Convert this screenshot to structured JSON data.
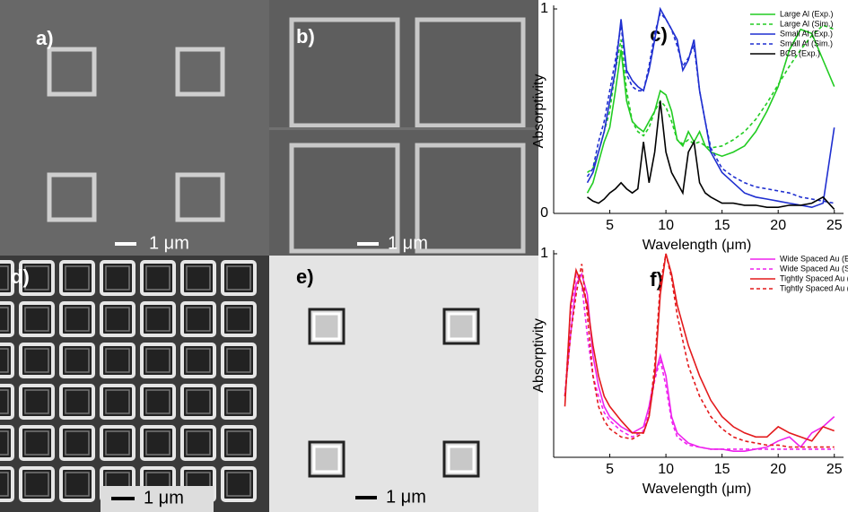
{
  "panels": [
    {
      "label": "a)",
      "scale_bar": "1 μm"
    },
    {
      "label": "b)",
      "scale_bar": "1 μm"
    },
    {
      "label": "d)",
      "scale_bar": "1 μm"
    },
    {
      "label": "e)",
      "scale_bar": "1 μm"
    }
  ],
  "chart_data": [
    {
      "type": "line",
      "label": "c)",
      "xlabel": "Wavelength (μm)",
      "ylabel": "Absorptivity",
      "xlim": [
        0,
        25.5
      ],
      "xticks": [
        5,
        10,
        15,
        20,
        25
      ],
      "ylim": [
        0,
        1
      ],
      "yticks": [
        0,
        1
      ],
      "legend": "upper right",
      "x": [
        3,
        3.5,
        4,
        4.5,
        5,
        5.5,
        6,
        6.5,
        7,
        7.5,
        8,
        8.5,
        9,
        9.5,
        10,
        10.5,
        11,
        11.5,
        12,
        12.5,
        13,
        13.5,
        14,
        15,
        16,
        17,
        18,
        19,
        20,
        21,
        22,
        23,
        24,
        25
      ],
      "series": [
        {
          "name": "Large Al (Exp.)",
          "color": "#22cc22",
          "dashed": false,
          "values": [
            0.1,
            0.15,
            0.25,
            0.35,
            0.42,
            0.6,
            0.8,
            0.55,
            0.45,
            0.42,
            0.4,
            0.45,
            0.5,
            0.6,
            0.58,
            0.5,
            0.36,
            0.33,
            0.4,
            0.35,
            0.4,
            0.33,
            0.3,
            0.28,
            0.3,
            0.33,
            0.4,
            0.5,
            0.62,
            0.8,
            0.9,
            0.88,
            0.75,
            0.62
          ]
        },
        {
          "name": "Large Al (Sim.)",
          "color": "#22cc22",
          "dashed": true,
          "values": [
            0.2,
            0.22,
            0.3,
            0.4,
            0.5,
            0.7,
            0.85,
            0.6,
            0.45,
            0.4,
            0.38,
            0.42,
            0.5,
            0.55,
            0.52,
            0.45,
            0.36,
            0.34,
            0.36,
            0.34,
            0.35,
            0.33,
            0.32,
            0.33,
            0.36,
            0.4,
            0.46,
            0.54,
            0.63,
            0.72,
            0.8,
            0.87,
            0.92,
            0.9
          ]
        },
        {
          "name": "Small Al (Exp.)",
          "color": "#1f2fd0",
          "dashed": false,
          "values": [
            0.15,
            0.2,
            0.3,
            0.4,
            0.55,
            0.7,
            0.95,
            0.7,
            0.65,
            0.62,
            0.6,
            0.7,
            0.85,
            1.0,
            0.95,
            0.9,
            0.85,
            0.7,
            0.75,
            0.85,
            0.6,
            0.45,
            0.3,
            0.2,
            0.15,
            0.1,
            0.08,
            0.07,
            0.06,
            0.05,
            0.04,
            0.03,
            0.05,
            0.42
          ]
        },
        {
          "name": "Small Al (Sim.)",
          "color": "#1f2fd0",
          "dashed": true,
          "values": [
            0.18,
            0.22,
            0.35,
            0.45,
            0.6,
            0.75,
            0.92,
            0.68,
            0.62,
            0.6,
            0.6,
            0.72,
            0.88,
            0.98,
            0.95,
            0.9,
            0.82,
            0.72,
            0.76,
            0.82,
            0.6,
            0.45,
            0.32,
            0.22,
            0.18,
            0.15,
            0.13,
            0.12,
            0.11,
            0.1,
            0.08,
            0.07,
            0.06,
            0.05
          ]
        },
        {
          "name": "BCB (Exp.)",
          "color": "#000000",
          "dashed": false,
          "values": [
            0.08,
            0.06,
            0.05,
            0.07,
            0.1,
            0.12,
            0.15,
            0.12,
            0.1,
            0.12,
            0.35,
            0.15,
            0.3,
            0.55,
            0.3,
            0.2,
            0.15,
            0.1,
            0.3,
            0.35,
            0.15,
            0.1,
            0.08,
            0.05,
            0.05,
            0.04,
            0.04,
            0.03,
            0.03,
            0.04,
            0.04,
            0.05,
            0.08,
            0.02
          ]
        }
      ]
    },
    {
      "type": "line",
      "label": "f)",
      "xlabel": "Wavelength (μm)",
      "ylabel": "Absorptivity",
      "xlim": [
        0,
        25.5
      ],
      "xticks": [
        5,
        10,
        15,
        20,
        25
      ],
      "ylim": [
        0,
        1
      ],
      "yticks": [
        1
      ],
      "legend": "upper right",
      "x": [
        1,
        1.5,
        2,
        2.5,
        3,
        3.5,
        4,
        4.5,
        5,
        6,
        7,
        8,
        8.5,
        9,
        9.5,
        10,
        10.5,
        11,
        12,
        13,
        14,
        15,
        16,
        17,
        18,
        19,
        20,
        21,
        22,
        23,
        24,
        25
      ],
      "series": [
        {
          "name": "Wide Spaced Au (Exp.)",
          "color": "#ee22ee",
          "dashed": false,
          "values": [
            0.3,
            0.6,
            0.85,
            0.9,
            0.8,
            0.5,
            0.35,
            0.25,
            0.2,
            0.15,
            0.12,
            0.15,
            0.25,
            0.4,
            0.5,
            0.4,
            0.2,
            0.12,
            0.07,
            0.05,
            0.04,
            0.04,
            0.03,
            0.03,
            0.04,
            0.05,
            0.08,
            0.1,
            0.05,
            0.12,
            0.15,
            0.2
          ]
        },
        {
          "name": "Wide Spaced Au (Sim.)",
          "color": "#ee22ee",
          "dashed": true,
          "values": [
            0.3,
            0.7,
            0.9,
            0.85,
            0.6,
            0.4,
            0.3,
            0.22,
            0.18,
            0.13,
            0.1,
            0.13,
            0.22,
            0.38,
            0.48,
            0.35,
            0.18,
            0.1,
            0.06,
            0.05,
            0.04,
            0.04,
            0.04,
            0.04,
            0.04,
            0.04,
            0.04,
            0.04,
            0.04,
            0.04,
            0.04,
            0.04
          ]
        },
        {
          "name": "Tightly Spaced Au (Exp.)",
          "color": "#e31a1c",
          "dashed": false,
          "values": [
            0.25,
            0.75,
            0.92,
            0.85,
            0.75,
            0.55,
            0.4,
            0.3,
            0.25,
            0.18,
            0.12,
            0.12,
            0.2,
            0.4,
            0.8,
            1.0,
            0.9,
            0.75,
            0.55,
            0.4,
            0.28,
            0.2,
            0.15,
            0.12,
            0.1,
            0.1,
            0.15,
            0.12,
            0.1,
            0.08,
            0.15,
            0.13
          ]
        },
        {
          "name": "Tightly Spaced Au (Sim.)",
          "color": "#e31a1c",
          "dashed": true,
          "values": [
            0.3,
            0.6,
            0.8,
            0.95,
            0.7,
            0.4,
            0.25,
            0.18,
            0.14,
            0.1,
            0.09,
            0.12,
            0.2,
            0.45,
            0.85,
            1.0,
            0.88,
            0.7,
            0.45,
            0.3,
            0.2,
            0.14,
            0.1,
            0.08,
            0.07,
            0.06,
            0.06,
            0.05,
            0.05,
            0.05,
            0.05,
            0.05
          ]
        }
      ]
    }
  ]
}
